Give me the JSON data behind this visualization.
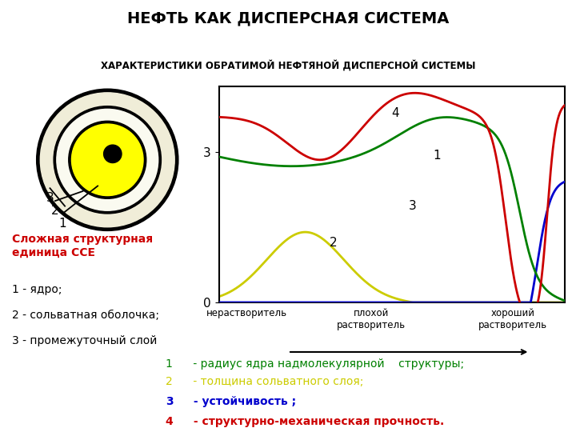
{
  "title": "НЕФТЬ КАК ДИСПЕРСНАЯ СИСТЕМА",
  "subtitle": "ХАРАКТЕРИСТИКИ ОБРАТИМОЙ НЕФТЯНОЙ ДИСПЕРСНОЙ СИСТЕМЫ",
  "header_bg_color": "#d9e8c8",
  "content_bg_color": "#ffffff",
  "plot_bg_color": "#ffffff",
  "curve_colors": [
    "#008000",
    "#cccc00",
    "#0000cd",
    "#cc0000"
  ],
  "x_labels": [
    "нерастворитель",
    "плохой\nрастворитель",
    "хороший\nрастворитель"
  ],
  "circle_info": {
    "outer_color": "#000000",
    "intermediate_color": "#f0edd8",
    "solvate_color": "#fafaf0",
    "yellow_color": "#ffff00",
    "core_color": "#000000"
  },
  "sse_text_color": "#cc0000",
  "sse_label": "Сложная структурная\nединица ССЕ",
  "sse_items": [
    "1 - ядро;",
    "2 - сольватная оболочка;",
    "3 - промежуточный слой"
  ],
  "legend_items": [
    {
      "num": "1",
      "color": "#008000",
      "text": " - радиус ядра надмолекулярной    структуры;",
      "bold": false
    },
    {
      "num": "2",
      "color": "#cccc00",
      "text": " - толщина сольватного слоя;",
      "bold": false
    },
    {
      "num": "3",
      "color": "#0000cd",
      "text": " - устойчивость ;",
      "bold": true
    },
    {
      "num": "4",
      "color": "#cc0000",
      "text": " - структурно-механическая прочность.",
      "bold": true
    }
  ]
}
